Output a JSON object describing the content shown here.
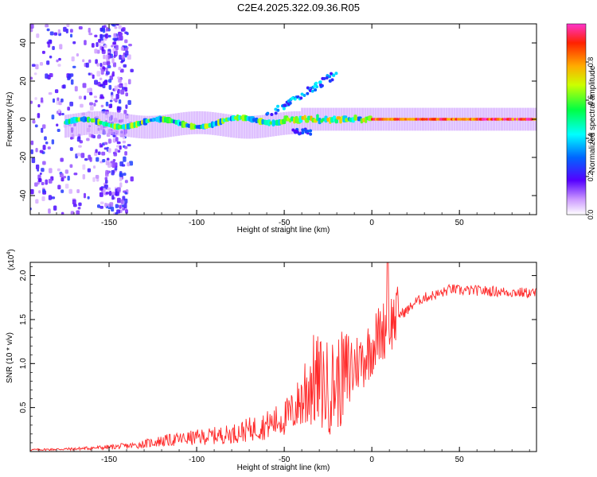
{
  "title": "C2E4.2025.322.09.36.R05",
  "colors": {
    "background": "#ffffff",
    "axis": "#000000",
    "snr_line": "#ff2a2a",
    "spectro_bg": "#ffffff"
  },
  "chart_data": [
    {
      "type": "heatmap",
      "name": "spectrogram",
      "xlabel": "Height of straight line (km)",
      "ylabel": "Frequency (Hz)",
      "xlim": [
        -195,
        94
      ],
      "ylim": [
        -50,
        50
      ],
      "xticks": [
        -150,
        -100,
        -50,
        0,
        50
      ],
      "xtick_labels": [
        "-150",
        "-100",
        "-50",
        "0",
        "50"
      ],
      "yticks": [
        -40,
        -20,
        0,
        20,
        40
      ],
      "ytick_labels": [
        "-40",
        "-20",
        "0",
        "20",
        "40"
      ],
      "colorbar": {
        "label": "Normalized spectral amplitude",
        "range": [
          0,
          1
        ],
        "ticks": [
          0.0,
          0.2,
          0.4,
          0.6,
          0.8
        ],
        "tick_labels": [
          "0.0",
          "0.2",
          "0.4",
          "0.6",
          "0.8"
        ]
      },
      "features": [
        {
          "name": "main-tone",
          "x_range": [
            -175,
            94
          ],
          "freq_hz": 0,
          "note": "strong narrowband line near 0 Hz, amplitude rising toward 1.0 above 0 km"
        },
        {
          "name": "upward-chirp",
          "x_range": [
            -60,
            -20
          ],
          "freq_hz_range": [
            0,
            30
          ],
          "note": "branch rising to ~30 Hz near -25 km"
        },
        {
          "name": "broadband-noise",
          "x_range": [
            -195,
            -140
          ],
          "freq_hz_range": [
            -50,
            50
          ],
          "note": "scattered low-amplitude speckle"
        }
      ]
    },
    {
      "type": "line",
      "name": "snr",
      "xlabel": "Height of straight line (km)",
      "ylabel": "SNR (10 * v/v)",
      "y_multiplier_label": "(x10",
      "y_multiplier_exp": "4",
      "y_multiplier_close": ")",
      "xlim": [
        -195,
        94
      ],
      "ylim": [
        0,
        2.15
      ],
      "xticks": [
        -150,
        -100,
        -50,
        0,
        50
      ],
      "xtick_labels": [
        "-150",
        "-100",
        "-50",
        "0",
        "50"
      ],
      "yticks": [
        0.5,
        1.0,
        1.5,
        2.0
      ],
      "ytick_labels": [
        "0.5",
        "1.0",
        "1.5",
        "2.0"
      ],
      "series": [
        {
          "name": "SNR",
          "x": [
            -195,
            -170,
            -150,
            -135,
            -120,
            -100,
            -80,
            -60,
            -50,
            -45,
            -40,
            -35,
            -30,
            -25,
            -20,
            -15,
            -10,
            -5,
            0,
            5,
            10,
            15,
            20,
            25,
            30,
            40,
            45,
            50,
            60,
            70,
            80,
            94
          ],
          "y": [
            0.02,
            0.03,
            0.05,
            0.07,
            0.12,
            0.16,
            0.2,
            0.3,
            0.38,
            0.45,
            0.6,
            0.8,
            0.78,
            0.72,
            0.78,
            0.85,
            1.0,
            1.05,
            1.2,
            1.35,
            1.45,
            1.55,
            1.6,
            1.7,
            1.75,
            1.8,
            1.85,
            1.83,
            1.83,
            1.82,
            1.81,
            1.8
          ]
        }
      ]
    }
  ]
}
